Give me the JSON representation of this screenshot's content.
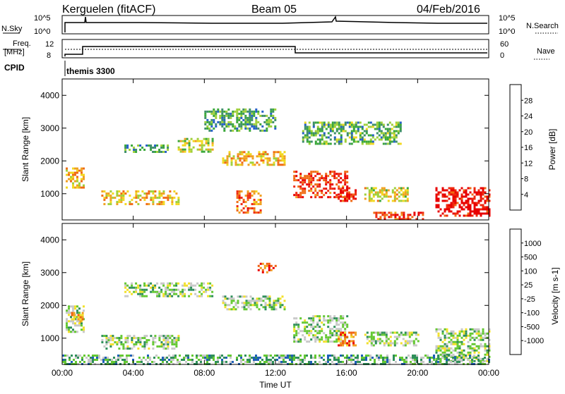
{
  "header": {
    "radar": "Kerguelen (fitACF)",
    "beam": "Beam 05",
    "date": "04/Feb/2016"
  },
  "noise_panel": {
    "left_label": "N.Sky",
    "right_label": "N.Search",
    "tick_labels": [
      "10^5",
      "10^0"
    ]
  },
  "freq_panel": {
    "left_label_1": "Freq.",
    "left_label_2": "[MHz]",
    "left_ticks": [
      "12",
      "8"
    ],
    "right_label": "Nave",
    "right_ticks": [
      "60",
      "0"
    ]
  },
  "cpid": {
    "label": "CPID",
    "value": "themis 3300"
  },
  "chart_data": [
    {
      "type": "heatmap",
      "name": "power",
      "xlabel": "",
      "ylabel": "Slant Range [km]",
      "xlim": [
        0,
        24
      ],
      "ylim": [
        200,
        4500
      ],
      "y_ticks": [
        "1000",
        "2000",
        "3000",
        "4000"
      ],
      "colorbar_label": "Power [dB]",
      "colorbar_ticks": [
        "4",
        "8",
        "12",
        "16",
        "20",
        "24",
        "28"
      ],
      "colorbar_colors": [
        "#0a1cff",
        "#2560c8",
        "#3e8f6a",
        "#3aa83a",
        "#9fd03a",
        "#f2d81e",
        "#f0a020",
        "#f06a14",
        "#ee2a10",
        "#e80000"
      ],
      "regions": [
        {
          "t0": 0.2,
          "t1": 1.2,
          "r0": 1200,
          "r1": 1800,
          "level": 0.6
        },
        {
          "t0": 2.2,
          "t1": 6.5,
          "r0": 700,
          "r1": 1100,
          "level": 0.6
        },
        {
          "t0": 3.5,
          "t1": 6.0,
          "r0": 2300,
          "r1": 2500,
          "level": 0.3
        },
        {
          "t0": 6.5,
          "t1": 8.5,
          "r0": 2300,
          "r1": 2700,
          "level": 0.5
        },
        {
          "t0": 9.0,
          "t1": 12.5,
          "r0": 1900,
          "r1": 2300,
          "level": 0.6
        },
        {
          "t0": 9.8,
          "t1": 11.2,
          "r0": 400,
          "r1": 1100,
          "level": 0.75
        },
        {
          "t0": 13.0,
          "t1": 16.0,
          "r0": 900,
          "r1": 1700,
          "level": 0.85
        },
        {
          "t0": 15.5,
          "t1": 16.5,
          "r0": 800,
          "r1": 1200,
          "level": 0.9
        },
        {
          "t0": 17.0,
          "t1": 19.5,
          "r0": 800,
          "r1": 1200,
          "level": 0.55
        },
        {
          "t0": 17.5,
          "t1": 20.5,
          "r0": 250,
          "r1": 450,
          "level": 0.85
        },
        {
          "t0": 21.0,
          "t1": 24.0,
          "r0": 300,
          "r1": 1200,
          "level": 0.95
        },
        {
          "t0": 13.5,
          "t1": 19.0,
          "r0": 2500,
          "r1": 3200,
          "level": 0.35
        },
        {
          "t0": 8.0,
          "t1": 12.0,
          "r0": 2900,
          "r1": 3600,
          "level": 0.3
        }
      ]
    },
    {
      "type": "heatmap",
      "name": "velocity",
      "xlabel": "Time UT",
      "ylabel": "Slant Range [km]",
      "xlim": [
        0,
        24
      ],
      "ylim": [
        200,
        4500
      ],
      "x_ticks": [
        "00:00",
        "04:00",
        "08:00",
        "12:00",
        "16:00",
        "20:00",
        "00:00"
      ],
      "y_ticks": [
        "1000",
        "2000",
        "3000",
        "4000"
      ],
      "colorbar_label": "Velocity [m s-1]",
      "colorbar_ticks": [
        "1000",
        "500",
        "100",
        "25",
        "-25",
        "-100",
        "-500",
        "-1000"
      ],
      "colorbar_colors": [
        "#0a1cff",
        "#1e5fb8",
        "#2f8f5a",
        "#64c832",
        "#c8c8c8",
        "#f2e02a",
        "#f0a020",
        "#f06010",
        "#ea0000"
      ],
      "regions": [
        {
          "t0": 0.2,
          "t1": 1.2,
          "r0": 1200,
          "r1": 2000,
          "level": 0.45
        },
        {
          "t0": 2.2,
          "t1": 6.5,
          "r0": 700,
          "r1": 1100,
          "level": 0.45
        },
        {
          "t0": 3.5,
          "t1": 8.5,
          "r0": 2300,
          "r1": 2700,
          "level": 0.45
        },
        {
          "t0": 9.0,
          "t1": 12.5,
          "r0": 1900,
          "r1": 2300,
          "level": 0.45
        },
        {
          "t0": 13.0,
          "t1": 16.0,
          "r0": 900,
          "r1": 1700,
          "level": 0.45
        },
        {
          "t0": 15.5,
          "t1": 16.5,
          "r0": 800,
          "r1": 1200,
          "level": 0.8
        },
        {
          "t0": 17.0,
          "t1": 20.0,
          "r0": 800,
          "r1": 1200,
          "level": 0.45
        },
        {
          "t0": 21.0,
          "t1": 24.0,
          "r0": 300,
          "r1": 1300,
          "level": 0.45
        },
        {
          "t0": 0.0,
          "t1": 24.0,
          "r0": 200,
          "r1": 500,
          "level": 0.35
        },
        {
          "t0": 11.0,
          "t1": 12.0,
          "r0": 3000,
          "r1": 3300,
          "level": 0.85
        },
        {
          "t0": 0.5,
          "t1": 1.2,
          "r0": 1500,
          "r1": 1800,
          "level": 0.7
        }
      ]
    }
  ]
}
